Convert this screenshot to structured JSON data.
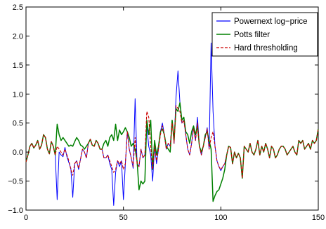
{
  "chart_data": {
    "type": "line",
    "title": "",
    "xlabel": "",
    "ylabel": "",
    "xlim": [
      0,
      150
    ],
    "ylim": [
      -1.0,
      2.5
    ],
    "x_ticks": [
      0,
      50,
      100,
      150
    ],
    "x_tick_labels": [
      "0",
      "50",
      "100",
      "150"
    ],
    "y_ticks": [
      -1.0,
      -0.5,
      0.0,
      0.5,
      1.0,
      1.5,
      2.0,
      2.5
    ],
    "y_tick_labels": [
      "−1.0",
      "−0.5",
      "0.0",
      "0.5",
      "1.0",
      "1.5",
      "2.0",
      "2.5"
    ],
    "grid": false,
    "legend_position": "top-right",
    "series": [
      {
        "name": "Powernext log−price",
        "color": "#0000ff",
        "dash": "solid",
        "x": [
          0,
          1,
          2,
          3,
          4,
          5,
          6,
          7,
          8,
          9,
          10,
          11,
          12,
          13,
          14,
          15,
          16,
          17,
          18,
          19,
          20,
          21,
          22,
          23,
          24,
          25,
          26,
          27,
          28,
          29,
          30,
          31,
          32,
          33,
          34,
          35,
          36,
          37,
          38,
          39,
          40,
          41,
          42,
          43,
          44,
          45,
          46,
          47,
          48,
          49,
          50,
          51,
          52,
          53,
          54,
          55,
          56,
          57,
          58,
          59,
          60,
          61,
          62,
          63,
          64,
          65,
          66,
          67,
          68,
          69,
          70,
          71,
          72,
          73,
          74,
          75,
          76,
          77,
          78,
          79,
          80,
          81,
          82,
          83,
          84,
          85,
          86,
          87,
          88,
          89,
          90,
          91,
          92,
          93,
          94,
          95,
          96,
          97,
          98,
          99,
          100,
          101,
          102,
          103,
          104,
          105,
          106,
          107,
          108,
          109,
          110,
          111,
          112,
          113,
          114,
          115,
          116,
          117,
          118,
          119,
          120,
          121,
          122,
          123,
          124,
          125,
          126,
          127,
          128,
          129,
          130,
          131,
          132,
          133,
          134,
          135,
          136,
          137,
          138,
          139,
          140,
          141,
          142,
          143,
          144,
          145,
          146,
          147,
          148,
          149,
          150
        ],
        "y": [
          -0.17,
          -0.05,
          0.1,
          0.15,
          0.07,
          0.12,
          0.2,
          0.05,
          0.12,
          0.3,
          0.25,
          0.05,
          -0.03,
          0.18,
          0.1,
          -0.05,
          -0.82,
          0.0,
          -0.05,
          -0.08,
          0.08,
          -0.08,
          -0.18,
          -0.28,
          -0.78,
          -0.2,
          -0.15,
          -0.3,
          -0.12,
          0.05,
          0.0,
          -0.1,
          0.15,
          0.22,
          0.12,
          0.1,
          0.2,
          0.15,
          0.05,
          0.05,
          -0.1,
          -0.1,
          -0.05,
          -0.2,
          -0.3,
          -0.92,
          -0.35,
          -0.15,
          -0.25,
          -0.15,
          -0.82,
          -0.2,
          0.35,
          0.05,
          -0.1,
          -0.28,
          0.92,
          -0.2,
          -0.25,
          0.05,
          -0.1,
          -0.05,
          0.45,
          0.1,
          -0.05,
          -0.5,
          0.1,
          -0.2,
          0.05,
          0.35,
          0.5,
          0.3,
          0.05,
          0.15,
          0.1,
          0.55,
          0.15,
          0.95,
          1.4,
          0.85,
          0.5,
          0.55,
          0.3,
          0.05,
          -0.05,
          0.15,
          0.45,
          0.2,
          0.6,
          0.1,
          -0.05,
          0.1,
          0.25,
          0.42,
          0.05,
          1.88,
          0.7,
          0.1,
          -0.15,
          -0.25,
          -0.32,
          -0.25,
          -0.2,
          -0.05,
          0.1,
          0.08,
          -0.2,
          0.0,
          -0.1,
          -0.02,
          -0.1,
          -0.45,
          0.1,
          0.05,
          0.0,
          0.15,
          0.0,
          -0.05,
          0.05,
          0.2,
          -0.05,
          0.1,
          0.0,
          0.15,
          0.05,
          -0.1,
          0.1,
          0.05,
          -0.1,
          -0.05,
          0.05,
          0.1,
          0.1,
          0.05,
          -0.05,
          0.0,
          0.05,
          0.1,
          0.0,
          -0.05,
          0.2,
          0.15,
          0.2,
          0.05,
          0.1,
          0.15,
          0.05,
          0.2,
          0.15,
          0.2,
          0.4
        ]
      },
      {
        "name": "Potts filter",
        "color": "#008000",
        "dash": "solid",
        "x": [
          0,
          1,
          2,
          3,
          4,
          5,
          6,
          7,
          8,
          9,
          10,
          11,
          12,
          13,
          14,
          15,
          16,
          17,
          18,
          19,
          20,
          21,
          22,
          23,
          24,
          25,
          26,
          27,
          28,
          29,
          30,
          31,
          32,
          33,
          34,
          35,
          36,
          37,
          38,
          39,
          40,
          41,
          42,
          43,
          44,
          45,
          46,
          47,
          48,
          49,
          50,
          51,
          52,
          53,
          54,
          55,
          56,
          57,
          58,
          59,
          60,
          61,
          62,
          63,
          64,
          65,
          66,
          67,
          68,
          69,
          70,
          71,
          72,
          73,
          74,
          75,
          76,
          77,
          78,
          79,
          80,
          81,
          82,
          83,
          84,
          85,
          86,
          87,
          88,
          89,
          90,
          91,
          92,
          93,
          94,
          95,
          96,
          97,
          98,
          99,
          100,
          101,
          102,
          103,
          104,
          105,
          106,
          107,
          108,
          109,
          110,
          111,
          112,
          113,
          114,
          115,
          116,
          117,
          118,
          119,
          120,
          121,
          122,
          123,
          124,
          125,
          126,
          127,
          128,
          129,
          130,
          131,
          132,
          133,
          134,
          135,
          136,
          137,
          138,
          139,
          140,
          141,
          142,
          143,
          144,
          145,
          146,
          147,
          148,
          149,
          150
        ],
        "y": [
          -0.17,
          -0.05,
          0.1,
          0.15,
          0.07,
          0.12,
          0.2,
          0.05,
          0.12,
          0.3,
          0.25,
          0.05,
          -0.03,
          0.18,
          0.1,
          -0.05,
          0.48,
          0.3,
          0.2,
          0.25,
          0.2,
          0.15,
          0.1,
          0.12,
          0.1,
          0.18,
          0.25,
          0.2,
          0.12,
          0.1,
          0.05,
          0.1,
          0.15,
          0.22,
          0.12,
          0.1,
          0.2,
          0.15,
          0.05,
          0.05,
          0.15,
          0.2,
          0.1,
          0.25,
          0.3,
          0.2,
          0.48,
          0.2,
          0.38,
          0.3,
          0.35,
          0.42,
          0.35,
          0.25,
          0.1,
          0.15,
          0.05,
          -0.15,
          -0.65,
          -0.5,
          -0.55,
          -0.5,
          0.55,
          0.3,
          0.55,
          -0.3,
          0.2,
          -0.05,
          0.1,
          0.35,
          0.4,
          0.3,
          0.1,
          0.05,
          0.0,
          0.55,
          0.2,
          0.75,
          0.7,
          0.85,
          0.55,
          0.6,
          0.35,
          0.3,
          0.15,
          0.35,
          0.45,
          0.3,
          0.45,
          0.1,
          0.0,
          0.1,
          0.3,
          0.35,
          0.2,
          0.05,
          -0.85,
          -0.75,
          -0.68,
          -0.65,
          -0.55,
          -0.45,
          -0.3,
          -0.05,
          0.1,
          0.08,
          -0.2,
          0.0,
          -0.1,
          -0.02,
          -0.1,
          -0.45,
          0.1,
          0.05,
          0.0,
          0.15,
          0.0,
          -0.05,
          0.05,
          0.2,
          -0.05,
          0.1,
          0.0,
          0.15,
          0.05,
          -0.1,
          0.1,
          0.05,
          -0.1,
          -0.05,
          0.05,
          0.1,
          0.1,
          0.05,
          -0.05,
          0.0,
          0.05,
          0.1,
          0.0,
          -0.05,
          0.2,
          0.15,
          0.2,
          0.05,
          0.1,
          0.15,
          0.05,
          0.2,
          0.15,
          0.2,
          0.4
        ]
      },
      {
        "name": "Hard thresholding",
        "color": "#cc0000",
        "dash": "dashed",
        "x": [
          0,
          1,
          2,
          3,
          4,
          5,
          6,
          7,
          8,
          9,
          10,
          11,
          12,
          13,
          14,
          15,
          16,
          17,
          18,
          19,
          20,
          21,
          22,
          23,
          24,
          25,
          26,
          27,
          28,
          29,
          30,
          31,
          32,
          33,
          34,
          35,
          36,
          37,
          38,
          39,
          40,
          41,
          42,
          43,
          44,
          45,
          46,
          47,
          48,
          49,
          50,
          51,
          52,
          53,
          54,
          55,
          56,
          57,
          58,
          59,
          60,
          61,
          62,
          63,
          64,
          65,
          66,
          67,
          68,
          69,
          70,
          71,
          72,
          73,
          74,
          75,
          76,
          77,
          78,
          79,
          80,
          81,
          82,
          83,
          84,
          85,
          86,
          87,
          88,
          89,
          90,
          91,
          92,
          93,
          94,
          95,
          96,
          97,
          98,
          99,
          100,
          101,
          102,
          103,
          104,
          105,
          106,
          107,
          108,
          109,
          110,
          111,
          112,
          113,
          114,
          115,
          116,
          117,
          118,
          119,
          120,
          121,
          122,
          123,
          124,
          125,
          126,
          127,
          128,
          129,
          130,
          131,
          132,
          133,
          134,
          135,
          136,
          137,
          138,
          139,
          140,
          141,
          142,
          143,
          144,
          145,
          146,
          147,
          148,
          149,
          150
        ],
        "y": [
          -0.17,
          -0.05,
          0.1,
          0.15,
          0.07,
          0.12,
          0.2,
          0.05,
          0.12,
          0.3,
          0.25,
          0.05,
          -0.03,
          0.18,
          0.1,
          -0.05,
          0.1,
          0.05,
          0.0,
          -0.05,
          0.05,
          -0.05,
          -0.15,
          -0.3,
          -0.4,
          -0.2,
          -0.15,
          -0.28,
          -0.12,
          0.05,
          0.0,
          -0.1,
          0.15,
          0.22,
          0.12,
          0.1,
          0.2,
          0.15,
          0.05,
          0.05,
          -0.1,
          -0.1,
          -0.05,
          -0.15,
          -0.25,
          -0.35,
          -0.3,
          -0.15,
          -0.2,
          -0.15,
          -0.3,
          -0.2,
          0.35,
          0.05,
          -0.1,
          -0.25,
          0.25,
          -0.2,
          -0.25,
          0.05,
          -0.1,
          -0.05,
          0.7,
          0.6,
          0.1,
          -0.3,
          0.1,
          -0.15,
          0.05,
          0.3,
          0.45,
          0.3,
          0.05,
          0.15,
          0.1,
          0.5,
          0.15,
          0.8,
          0.75,
          0.7,
          0.5,
          0.55,
          0.3,
          0.05,
          -0.05,
          0.15,
          0.4,
          0.2,
          0.5,
          0.1,
          -0.05,
          0.1,
          0.25,
          0.4,
          0.05,
          0.25,
          0.35,
          0.1,
          -0.15,
          -0.25,
          -0.3,
          -0.25,
          -0.2,
          -0.05,
          0.1,
          0.08,
          -0.2,
          0.0,
          -0.1,
          -0.02,
          -0.1,
          -0.45,
          0.1,
          0.05,
          0.0,
          0.15,
          0.0,
          -0.05,
          0.05,
          0.2,
          -0.05,
          0.1,
          0.0,
          0.15,
          0.05,
          -0.1,
          0.1,
          0.05,
          -0.1,
          -0.05,
          0.05,
          0.1,
          0.1,
          0.05,
          -0.05,
          0.0,
          0.05,
          0.1,
          0.0,
          -0.05,
          0.2,
          0.15,
          0.2,
          0.05,
          0.1,
          0.15,
          0.05,
          0.2,
          0.15,
          0.2,
          0.4
        ]
      }
    ]
  }
}
